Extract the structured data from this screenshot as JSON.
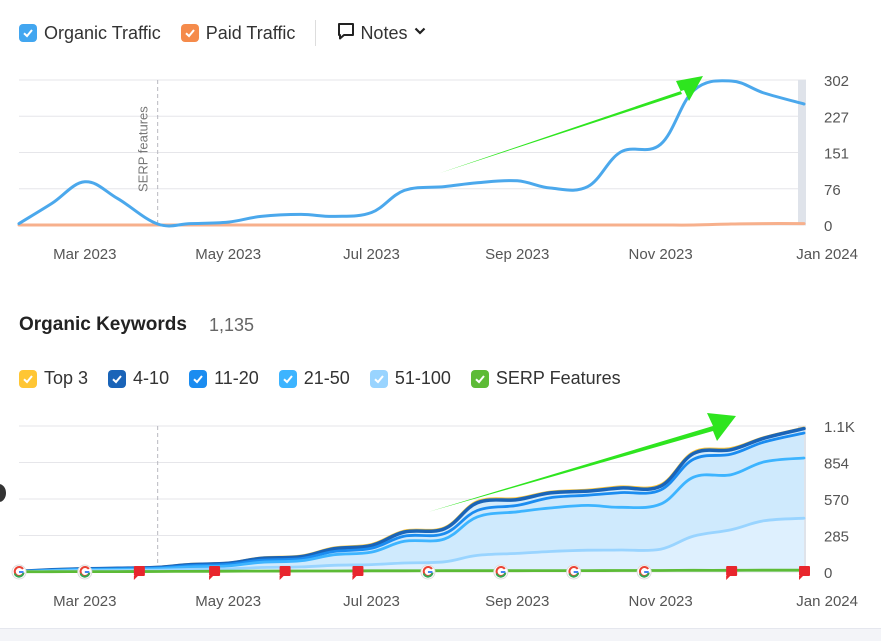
{
  "traffic_legend": {
    "organic": {
      "label": "Organic Traffic",
      "color": "#42a6f0"
    },
    "paid": {
      "label": "Paid Traffic",
      "color": "#f58b4b"
    },
    "notes_label": "Notes"
  },
  "keywords": {
    "title": "Organic Keywords",
    "count": "1,135",
    "legend": [
      {
        "label": "Top 3",
        "color": "#ffc634"
      },
      {
        "label": "4-10",
        "color": "#1a64b8"
      },
      {
        "label": "11-20",
        "color": "#1b8cf0"
      },
      {
        "label": "21-50",
        "color": "#3db4ff"
      },
      {
        "label": "51-100",
        "color": "#99d4ff"
      },
      {
        "label": "SERP Features",
        "color": "#5dbb36"
      }
    ]
  },
  "annotation": "SERP features",
  "chart_data": [
    {
      "type": "line",
      "x_labels": [
        "Mar 2023",
        "May 2023",
        "Jul 2023",
        "Sep 2023",
        "Nov 2023",
        "Jan 2024"
      ],
      "y_ticks": [
        "302",
        "227",
        "151",
        "76",
        "0"
      ],
      "ylim": [
        0,
        302
      ],
      "x": [
        "2023-02-01",
        "2023-02-15",
        "2023-03-01",
        "2023-03-15",
        "2023-04-01",
        "2023-04-15",
        "2023-05-01",
        "2023-05-15",
        "2023-06-01",
        "2023-06-15",
        "2023-07-01",
        "2023-07-15",
        "2023-08-01",
        "2023-08-15",
        "2023-09-01",
        "2023-09-15",
        "2023-10-01",
        "2023-10-15",
        "2023-11-01",
        "2023-11-15",
        "2023-12-01",
        "2023-12-15",
        "2024-01-01"
      ],
      "series": [
        {
          "name": "Organic Traffic",
          "color": "#4ba8ec",
          "values": [
            3,
            45,
            90,
            55,
            2,
            3,
            6,
            18,
            22,
            18,
            26,
            72,
            80,
            88,
            92,
            77,
            80,
            152,
            168,
            280,
            300,
            275,
            252
          ]
        },
        {
          "name": "Paid Traffic",
          "color": "#f7b08c",
          "values": [
            0,
            0,
            0,
            0,
            0,
            0,
            0,
            0,
            0,
            0,
            0,
            0,
            0,
            0,
            0,
            0,
            0,
            0,
            0,
            0,
            2,
            3,
            3
          ]
        }
      ],
      "annotation": {
        "date": "2023-04-01",
        "label": "SERP features"
      }
    },
    {
      "type": "area",
      "x_labels": [
        "Mar 2023",
        "May 2023",
        "Jul 2023",
        "Sep 2023",
        "Nov 2023",
        "Jan 2024"
      ],
      "y_ticks": [
        "1.1K",
        "854",
        "570",
        "285",
        "0"
      ],
      "ylim": [
        0,
        1140
      ],
      "x": [
        "2023-02-01",
        "2023-02-15",
        "2023-03-01",
        "2023-03-15",
        "2023-04-01",
        "2023-04-15",
        "2023-05-01",
        "2023-05-15",
        "2023-06-01",
        "2023-06-15",
        "2023-07-01",
        "2023-07-15",
        "2023-08-01",
        "2023-08-15",
        "2023-09-01",
        "2023-09-15",
        "2023-10-01",
        "2023-10-15",
        "2023-11-01",
        "2023-11-15",
        "2023-12-01",
        "2023-12-15",
        "2024-01-01"
      ],
      "series": [
        {
          "name": "Top 3",
          "color": "#ffc634",
          "values": [
            6,
            18,
            26,
            30,
            38,
            60,
            70,
            110,
            125,
            188,
            215,
            320,
            345,
            550,
            575,
            625,
            640,
            665,
            680,
            935,
            965,
            1050,
            1125
          ]
        },
        {
          "name": "4-10",
          "color": "#1a64b8",
          "values": [
            5,
            17,
            25,
            29,
            36,
            58,
            68,
            106,
            120,
            182,
            208,
            312,
            338,
            540,
            565,
            618,
            632,
            656,
            670,
            925,
            955,
            1045,
            1120
          ]
        },
        {
          "name": "11-20",
          "color": "#1b8cf0",
          "values": [
            4,
            15,
            22,
            25,
            32,
            50,
            60,
            92,
            105,
            160,
            185,
            280,
            300,
            480,
            520,
            580,
            600,
            620,
            640,
            880,
            920,
            1015,
            1085
          ]
        },
        {
          "name": "21-50",
          "color": "#3db4ff",
          "values": [
            3,
            12,
            18,
            20,
            26,
            40,
            48,
            76,
            88,
            135,
            155,
            240,
            258,
            430,
            470,
            500,
            520,
            505,
            530,
            740,
            760,
            860,
            890
          ]
        },
        {
          "name": "51-100",
          "color": "#99d4ff",
          "values": [
            2,
            6,
            10,
            12,
            15,
            20,
            25,
            35,
            40,
            52,
            58,
            70,
            80,
            130,
            145,
            160,
            170,
            172,
            178,
            280,
            330,
            400,
            420
          ]
        },
        {
          "name": "SERP Features",
          "color": "#5dbb36",
          "values": [
            2,
            2,
            3,
            3,
            4,
            5,
            6,
            7,
            8,
            8,
            9,
            9,
            10,
            10,
            10,
            11,
            11,
            12,
            12,
            13,
            13,
            14,
            14
          ]
        }
      ],
      "markers": [
        {
          "date": "2023-02-01",
          "type": "google"
        },
        {
          "date": "2023-03-01",
          "type": "google"
        },
        {
          "date": "2023-03-24",
          "type": "flag"
        },
        {
          "date": "2023-04-25",
          "type": "flag"
        },
        {
          "date": "2023-05-25",
          "type": "flag"
        },
        {
          "date": "2023-06-25",
          "type": "flag"
        },
        {
          "date": "2023-07-25",
          "type": "google"
        },
        {
          "date": "2023-08-25",
          "type": "google"
        },
        {
          "date": "2023-09-25",
          "type": "google"
        },
        {
          "date": "2023-10-25",
          "type": "google"
        },
        {
          "date": "2023-12-01",
          "type": "flag"
        },
        {
          "date": "2024-01-01",
          "type": "flag"
        }
      ],
      "annotation": {
        "date": "2023-04-01"
      }
    }
  ]
}
